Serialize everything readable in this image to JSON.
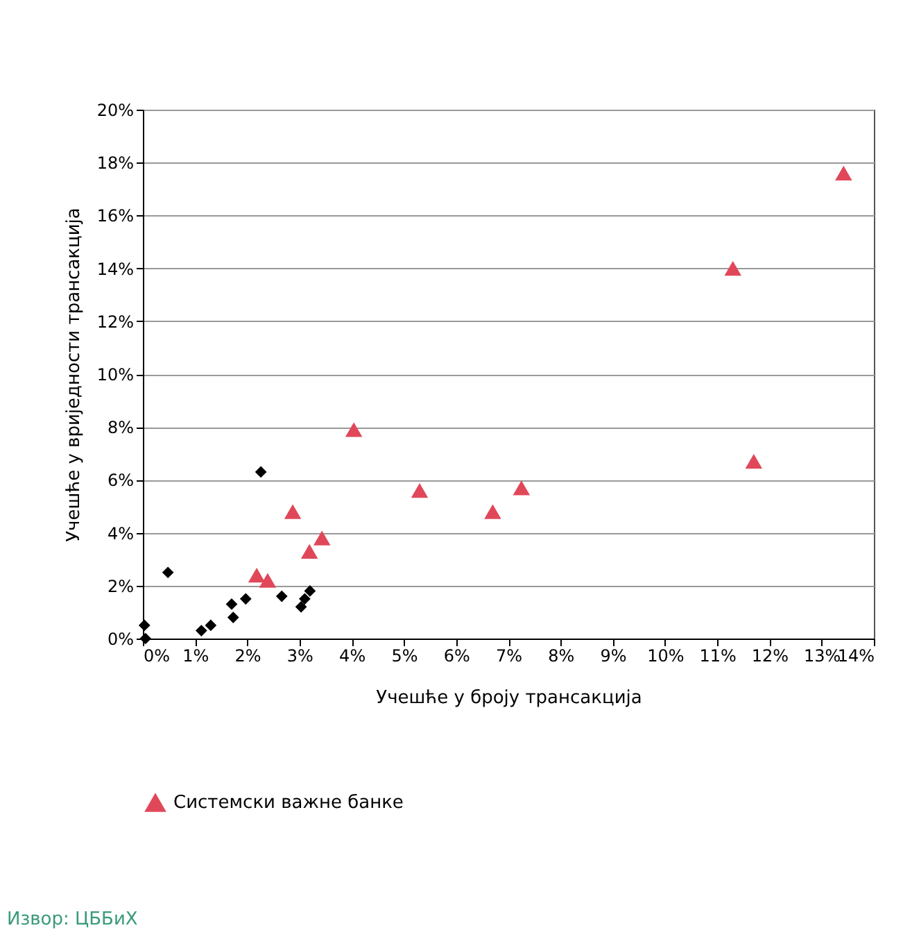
{
  "chart_data": {
    "type": "scatter",
    "xlabel": "Учешће у броју трансакција",
    "ylabel": "Учешће у вриједности трансакција",
    "xlim": [
      0,
      14
    ],
    "ylim": [
      0,
      20
    ],
    "xticks": [
      {
        "value": 0,
        "label": "0%"
      },
      {
        "value": 1,
        "label": "1%"
      },
      {
        "value": 2,
        "label": "2%"
      },
      {
        "value": 3,
        "label": "3%"
      },
      {
        "value": 4,
        "label": "4%"
      },
      {
        "value": 5,
        "label": "5%"
      },
      {
        "value": 6,
        "label": "6%"
      },
      {
        "value": 7,
        "label": "7%"
      },
      {
        "value": 8,
        "label": "8%"
      },
      {
        "value": 9,
        "label": "9%"
      },
      {
        "value": 10,
        "label": "10%"
      },
      {
        "value": 11,
        "label": "11%"
      },
      {
        "value": 12,
        "label": "12%"
      },
      {
        "value": 13,
        "label": "13%"
      },
      {
        "value": 14,
        "label": "14%"
      }
    ],
    "yticks": [
      {
        "value": 0,
        "label": "0%"
      },
      {
        "value": 2,
        "label": "2%"
      },
      {
        "value": 4,
        "label": "4%"
      },
      {
        "value": 6,
        "label": "6%"
      },
      {
        "value": 8,
        "label": "8%"
      },
      {
        "value": 10,
        "label": "10%"
      },
      {
        "value": 12,
        "label": "12%"
      },
      {
        "value": 14,
        "label": "14%"
      },
      {
        "value": 16,
        "label": "16%"
      },
      {
        "value": 18,
        "label": "18%"
      },
      {
        "value": 20,
        "label": "20%"
      }
    ],
    "grid": "y",
    "legend": "bottom",
    "annotations": [
      "Извор: ЦББиХ"
    ],
    "series": [
      {
        "color": "#000000",
        "marker": "diamond",
        "x": [
          0.03,
          0.05,
          0.48,
          1.12,
          1.3,
          1.7,
          1.73,
          1.97,
          2.26,
          2.66,
          3.03,
          3.1,
          3.2
        ],
        "values": [
          0.5,
          0.0,
          2.5,
          0.3,
          0.5,
          1.3,
          0.8,
          1.5,
          6.3,
          1.6,
          1.2,
          1.5,
          1.8
        ]
      },
      {
        "name": "Системски важне банке",
        "color": "#e0485a",
        "marker": "triangle",
        "x": [
          13.42,
          11.3,
          11.7,
          4.04,
          5.3,
          7.25,
          6.7,
          2.87,
          3.43,
          3.19,
          2.18,
          2.39
        ],
        "values": [
          17.6,
          14.0,
          6.7,
          7.9,
          5.6,
          5.7,
          4.8,
          4.8,
          3.8,
          3.3,
          2.4,
          2.2
        ]
      }
    ]
  }
}
